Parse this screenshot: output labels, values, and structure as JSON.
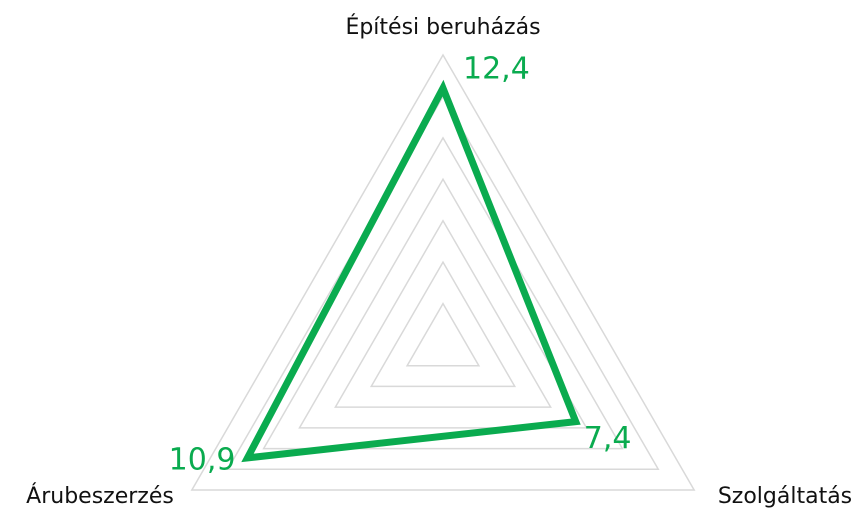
{
  "chart_data": {
    "type": "radar",
    "categories": [
      "Építési beruházás",
      "Szolgáltatás",
      "Árubeszerzés"
    ],
    "series": [
      {
        "color": "#0aab4f",
        "values": [
          12.4,
          7.4,
          10.9
        ],
        "value_labels": [
          "12,4",
          "7,4",
          "10,9"
        ]
      }
    ],
    "ylim": [
      0,
      14
    ],
    "yticks": [
      2,
      4,
      6,
      8,
      10,
      12,
      14
    ],
    "grid": true
  }
}
